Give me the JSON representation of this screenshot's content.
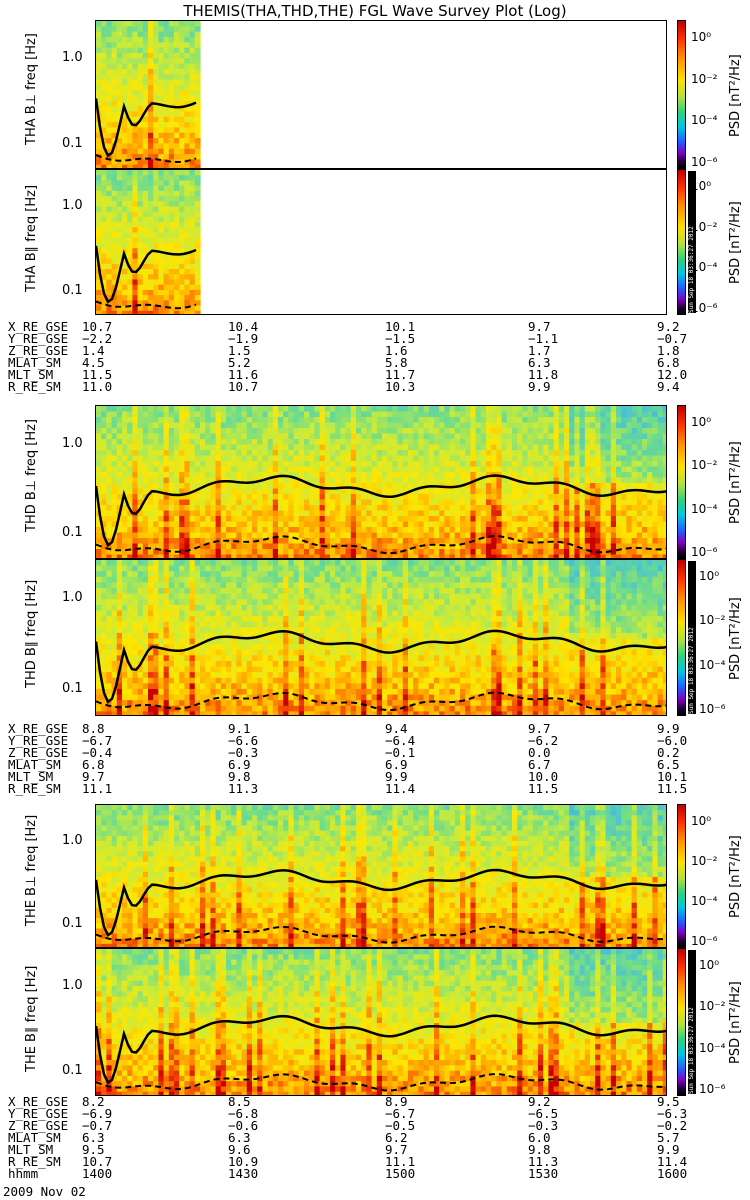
{
  "title": "THEMIS(THA,THD,THE) FGL Wave Survey Plot (Log)",
  "colorbar": {
    "title": "PSD [nT²/Hz]",
    "ticks": [
      "10⁰",
      "10⁻²",
      "10⁻⁴",
      "10⁻⁶"
    ],
    "stamp": "Sun Sep 18 03:36:27 2012"
  },
  "freq_ticks": [
    "1.0",
    "0.1"
  ],
  "probes": [
    {
      "id": "tha",
      "panels": [
        {
          "label": "THA B⊥  freq [Hz]",
          "coverage": 0.18
        },
        {
          "label": "THA B∥  freq [Hz]",
          "coverage": 0.18
        }
      ],
      "orbit": [
        {
          "name": "X_RE_GSE",
          "values": [
            "10.7",
            "10.4",
            "10.1",
            "9.7",
            "9.2"
          ]
        },
        {
          "name": "Y_RE_GSE",
          "values": [
            "−2.2",
            "−1.9",
            "−1.5",
            "−1.1",
            "−0.7"
          ]
        },
        {
          "name": "Z_RE_GSE",
          "values": [
            "1.4",
            "1.5",
            "1.6",
            "1.7",
            "1.8"
          ]
        },
        {
          "name": "MLAT_SM",
          "values": [
            "4.5",
            "5.2",
            "5.8",
            "6.3",
            "6.8"
          ]
        },
        {
          "name": "MLT_SM",
          "values": [
            "11.5",
            "11.6",
            "11.7",
            "11.8",
            "12.0"
          ]
        },
        {
          "name": "R_RE_SM",
          "values": [
            "11.0",
            "10.7",
            "10.3",
            "9.9",
            "9.4"
          ]
        }
      ]
    },
    {
      "id": "thd",
      "panels": [
        {
          "label": "THD B⊥  freq [Hz]",
          "coverage": 1.0
        },
        {
          "label": "THD B∥  freq [Hz]",
          "coverage": 1.0
        }
      ],
      "orbit": [
        {
          "name": "X_RE_GSE",
          "values": [
            "8.8",
            "9.1",
            "9.4",
            "9.7",
            "9.9"
          ]
        },
        {
          "name": "Y_RE_GSE",
          "values": [
            "−6.7",
            "−6.6",
            "−6.4",
            "−6.2",
            "−6.0"
          ]
        },
        {
          "name": "Z_RE_GSE",
          "values": [
            "−0.4",
            "−0.3",
            "−0.1",
            "0.0",
            "0.2"
          ]
        },
        {
          "name": "MLAT_SM",
          "values": [
            "6.8",
            "6.9",
            "6.9",
            "6.7",
            "6.5"
          ]
        },
        {
          "name": "MLT_SM",
          "values": [
            "9.7",
            "9.8",
            "9.9",
            "10.0",
            "10.1"
          ]
        },
        {
          "name": "R_RE_SM",
          "values": [
            "11.1",
            "11.3",
            "11.4",
            "11.5",
            "11.5"
          ]
        }
      ]
    },
    {
      "id": "the",
      "panels": [
        {
          "label": "THE B⊥  freq [Hz]",
          "coverage": 1.0
        },
        {
          "label": "THE B∥  freq [Hz]",
          "coverage": 1.0
        }
      ],
      "orbit": [
        {
          "name": "X_RE_GSE",
          "values": [
            "8.2",
            "8.5",
            "8.9",
            "9.2",
            "9.5"
          ]
        },
        {
          "name": "Y_RE_GSE",
          "values": [
            "−6.9",
            "−6.8",
            "−6.7",
            "−6.5",
            "−6.3"
          ]
        },
        {
          "name": "Z_RE_GSE",
          "values": [
            "−0.7",
            "−0.6",
            "−0.5",
            "−0.3",
            "−0.2"
          ]
        },
        {
          "name": "MLAT_SM",
          "values": [
            "6.3",
            "6.3",
            "6.2",
            "6.0",
            "5.7"
          ]
        },
        {
          "name": "MLT_SM",
          "values": [
            "9.5",
            "9.6",
            "9.7",
            "9.8",
            "9.9"
          ]
        },
        {
          "name": "R_RE_SM",
          "values": [
            "10.7",
            "10.9",
            "11.1",
            "11.3",
            "11.4"
          ]
        },
        {
          "name": "hhmm",
          "values": [
            "1400",
            "1430",
            "1500",
            "1530",
            "1600"
          ]
        }
      ]
    }
  ],
  "date": "2009 Nov 02",
  "chart_data": {
    "type": "heatmap",
    "title": "THEMIS(THA,THD,THE) FGL Wave Survey Plot (Log)",
    "x_ticks": [
      "1400",
      "1430",
      "1500",
      "1530",
      "1600"
    ],
    "y_scale": "log",
    "ylabel": "freq [Hz]",
    "colorbar_label": "PSD [nT²/Hz]",
    "colorbar_log_range": [
      -7,
      1
    ],
    "panels": [
      "THA B⊥",
      "THA B∥",
      "THD B⊥",
      "THD B∥",
      "THE B⊥",
      "THE B∥"
    ]
  }
}
